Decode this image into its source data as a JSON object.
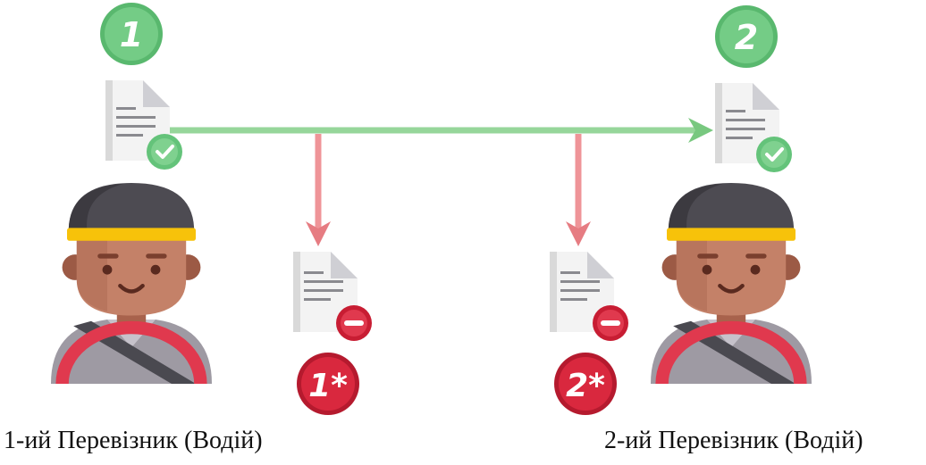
{
  "badges": {
    "b1": "1",
    "b2": "2",
    "b1s": "1*",
    "b2s": "2*"
  },
  "labels": {
    "left": "1-ий Перевізник (Водій)",
    "right": "2-ий Перевізник (Водій)"
  },
  "icons": {
    "doc_ok": "document-check-icon",
    "doc_rejected": "document-minus-icon",
    "driver": "driver-icon"
  },
  "colors": {
    "green": "#6fcf84",
    "green_arrow": "#8fd694",
    "red": "#d7263d",
    "red_arrow": "#ee8f95"
  }
}
